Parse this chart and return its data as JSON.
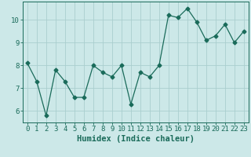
{
  "x": [
    0,
    1,
    2,
    3,
    4,
    5,
    6,
    7,
    8,
    9,
    10,
    11,
    12,
    13,
    14,
    15,
    16,
    17,
    18,
    19,
    20,
    21,
    22,
    23
  ],
  "y": [
    8.1,
    7.3,
    5.8,
    7.8,
    7.3,
    6.6,
    6.6,
    8.0,
    7.7,
    7.5,
    8.0,
    6.3,
    7.7,
    7.5,
    8.0,
    10.2,
    10.1,
    10.5,
    9.9,
    9.1,
    9.3,
    9.8,
    9.0,
    9.5
  ],
  "line_color": "#1a6b5a",
  "marker": "D",
  "marker_size": 2.5,
  "bg_color": "#cce8e8",
  "grid_color": "#aacece",
  "xlabel": "Humidex (Indice chaleur)",
  "xlim": [
    -0.5,
    23.5
  ],
  "ylim": [
    5.5,
    10.8
  ],
  "yticks": [
    6,
    7,
    8,
    9,
    10
  ],
  "xticks": [
    0,
    1,
    2,
    3,
    4,
    5,
    6,
    7,
    8,
    9,
    10,
    11,
    12,
    13,
    14,
    15,
    16,
    17,
    18,
    19,
    20,
    21,
    22,
    23
  ],
  "tick_font_size": 6.5,
  "label_font_size": 7.5
}
